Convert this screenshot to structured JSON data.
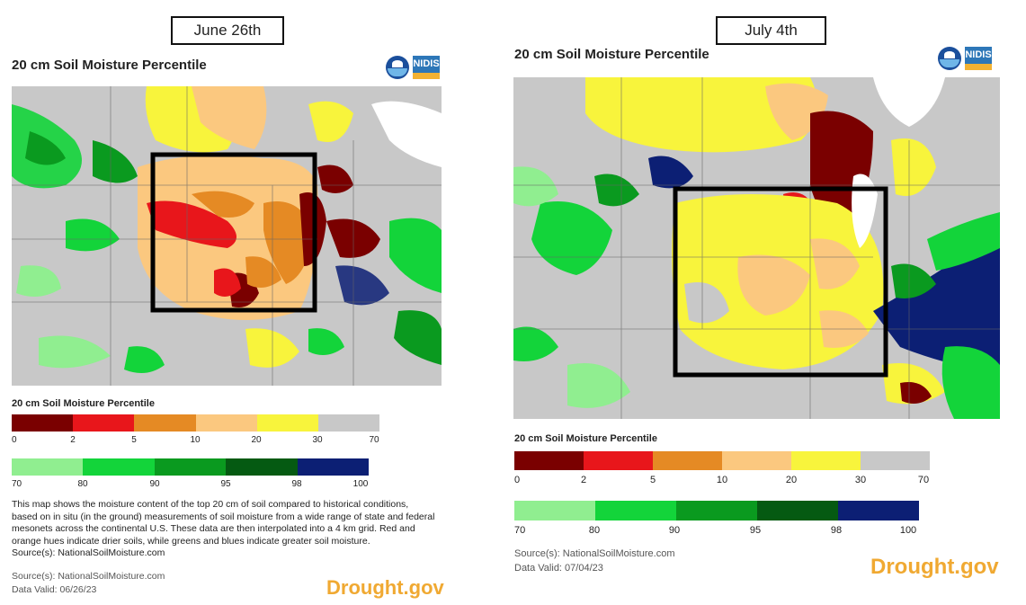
{
  "colors": {
    "dry": [
      "#7a0000",
      "#e8161b",
      "#e58a24",
      "#fbc87f",
      "#f8f43c",
      "#c8c8c8"
    ],
    "wet": [
      "#90ee90",
      "#13d43a",
      "#0a9a1f",
      "#055a12",
      "#0c1f74"
    ],
    "brand": "#f0a932"
  },
  "left": {
    "date_label": "June 26th",
    "title": "20 cm Soil Moisture Percentile",
    "legend_title": "20 cm Soil Moisture Percentile",
    "dry_ticks": [
      "0",
      "2",
      "5",
      "10",
      "20",
      "30",
      "70"
    ],
    "wet_ticks": [
      "70",
      "80",
      "90",
      "95",
      "98",
      "100"
    ],
    "description": "This map shows the moisture content of the top 20 cm of soil compared to historical conditions, based on in situ (in the ground) measurements of soil moisture from a wide range of state and federal mesonets across the continental U.S. These data are then interpolated into a 4 km grid. Red and orange hues indicate drier soils, while greens and blues indicate greater soil moisture.",
    "source_inline": "Source(s): NationalSoilMoisture.com",
    "source": "Source(s): NationalSoilMoisture.com",
    "data_valid": "Data Valid: 06/26/23",
    "brand": "Drought.gov",
    "logo_noaa": "NOAA",
    "logo_nidis": "NIDIS"
  },
  "right": {
    "date_label": "July 4th",
    "title": "20 cm Soil Moisture Percentile",
    "legend_title": "20 cm Soil Moisture Percentile",
    "dry_ticks": [
      "0",
      "2",
      "5",
      "10",
      "20",
      "30",
      "70"
    ],
    "wet_ticks": [
      "70",
      "80",
      "90",
      "95",
      "98",
      "100"
    ],
    "source": "Source(s): NationalSoilMoisture.com",
    "data_valid": "Data Valid: 07/04/23",
    "brand": "Drought.gov",
    "logo_noaa": "NOAA",
    "logo_nidis": "NIDIS"
  }
}
